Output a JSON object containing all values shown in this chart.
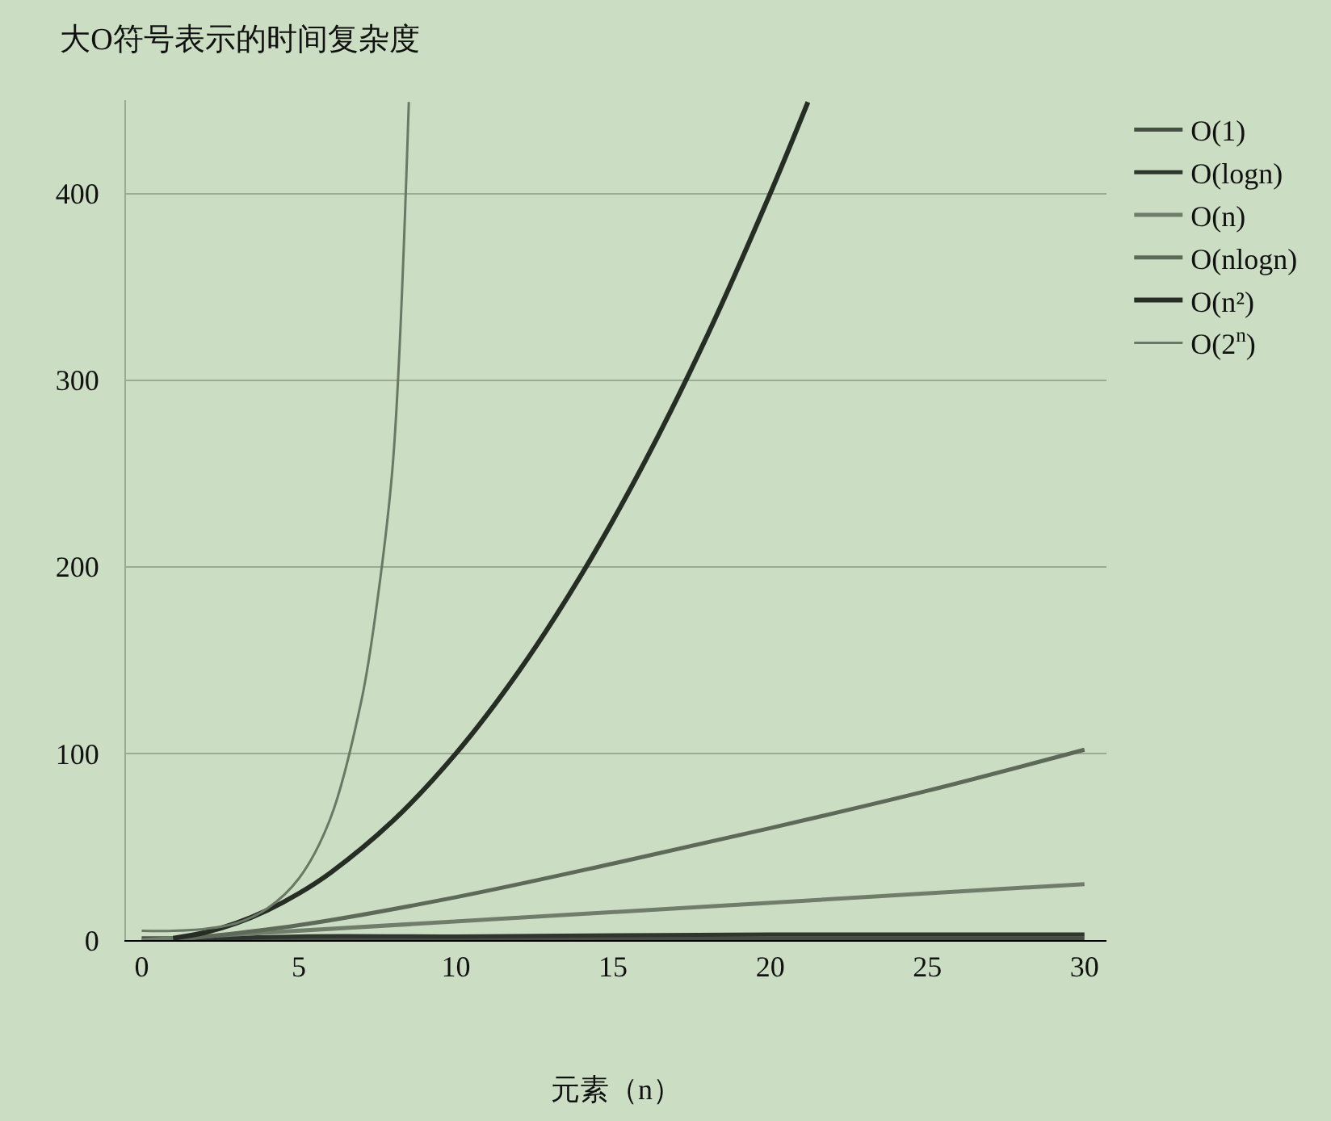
{
  "chart_data": {
    "type": "line",
    "title": "大O符号表示的时间复杂度",
    "xlabel": "元素（n）",
    "xlim": [
      -0.5,
      30.7
    ],
    "ylim": [
      0,
      450
    ],
    "xticks": [
      0,
      5,
      10,
      15,
      20,
      25,
      30
    ],
    "yticks": [
      0,
      100,
      200,
      300,
      400
    ],
    "grid": "y",
    "legend": "top right",
    "marker": "none",
    "line_style": "solid",
    "series": [
      {
        "name": "O(1)",
        "color": "#474f45",
        "x": [
          0,
          30
        ],
        "values": [
          1,
          1
        ]
      },
      {
        "name": "O(logn)",
        "color": "#2f362d",
        "x": [
          1,
          5,
          10,
          20,
          30
        ],
        "values": [
          0,
          2,
          2,
          3,
          3
        ]
      },
      {
        "name": "O(n)",
        "color": "#6f7d6a",
        "x": [
          0,
          30
        ],
        "values": [
          0,
          30
        ]
      },
      {
        "name": "O(nlogn)",
        "color": "#5d6a59",
        "x": [
          1,
          5,
          10,
          15,
          20,
          25,
          30
        ],
        "values": [
          0,
          8,
          23,
          41,
          60,
          80,
          102
        ]
      },
      {
        "name": "O(n²)",
        "color": "#262d24",
        "x": [
          1,
          2,
          3,
          4,
          5,
          6,
          8,
          10,
          12,
          14,
          16,
          18,
          20,
          21.2
        ],
        "values": [
          1,
          4,
          9,
          16,
          25,
          36,
          64,
          100,
          144,
          196,
          256,
          324,
          400,
          449
        ]
      },
      {
        "name": "O(2$^{n}$)",
        "color": "#6a7866",
        "x": [
          0,
          1,
          2,
          3,
          4,
          5,
          6,
          7,
          7.5,
          8,
          8.5
        ],
        "values": [
          5,
          5,
          6,
          9,
          17,
          33,
          65,
          129,
          182,
          257,
          449
        ]
      }
    ]
  }
}
